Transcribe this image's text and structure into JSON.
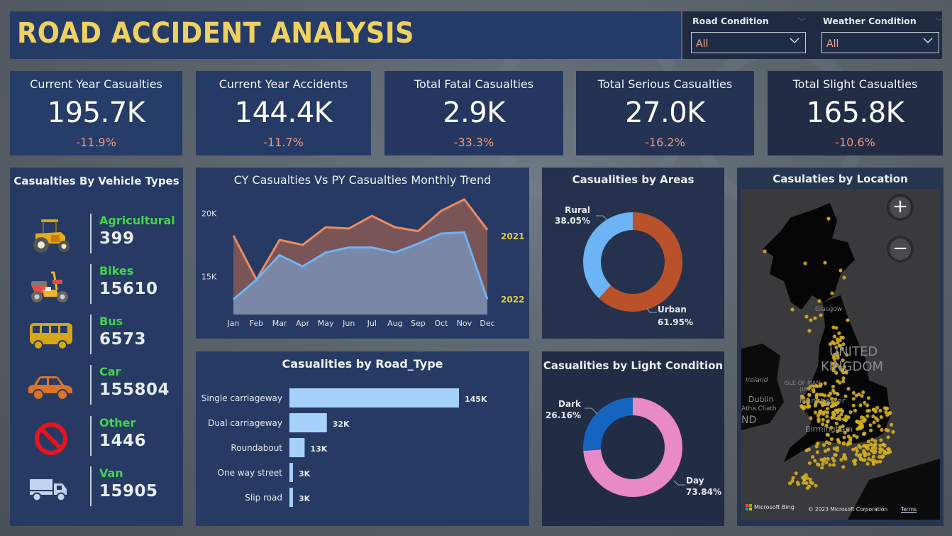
{
  "header": {
    "title": "ROAD ACCIDENT ANALYSIS"
  },
  "filters": [
    {
      "label": "Road Condition",
      "value": "All"
    },
    {
      "label": "Weather Condition",
      "value": "All"
    }
  ],
  "kpis": [
    {
      "title": "Current Year Casualties",
      "value": "195.7K",
      "delta": "-11.9%"
    },
    {
      "title": "Current Year Accidents",
      "value": "144.4K",
      "delta": "-11.7%"
    },
    {
      "title": "Total Fatal Casualties",
      "value": "2.9K",
      "delta": "-33.3%"
    },
    {
      "title": "Total Serious Casualties",
      "value": "27.0K",
      "delta": "-16.2%"
    },
    {
      "title": "Total Slight Casualties",
      "value": "165.8K",
      "delta": "-10.6%"
    }
  ],
  "vehicles": {
    "title": "Casualties By Vehicle Types",
    "items": [
      {
        "label": "Agricultural",
        "value": "399",
        "icon": "tractor-icon"
      },
      {
        "label": "Bikes",
        "value": "15610",
        "icon": "motorbike-icon"
      },
      {
        "label": "Bus",
        "value": "6573",
        "icon": "bus-icon"
      },
      {
        "label": "Car",
        "value": "155804",
        "icon": "car-icon"
      },
      {
        "label": "Other",
        "value": "1446",
        "icon": "prohibited-icon"
      },
      {
        "label": "Van",
        "value": "15905",
        "icon": "van-icon"
      }
    ]
  },
  "map": {
    "title": "Casulaties by Location",
    "zoom_in": "+",
    "zoom_out": "−",
    "labels": {
      "country1": "UNITED",
      "country2": "KINGDOM",
      "glasgow": "Glasgow",
      "ireland": "Ireland",
      "isle": "ISLE OF MAN",
      "isle_uk": "(UK)",
      "dublin": "Dublin",
      "atha": "Atha Cliath",
      "manchester": "Manchester",
      "birmingham": "Birmingham",
      "nd": "ND"
    },
    "attribution_brand": "Microsoft Bing",
    "copyright": "© 2023 Microsoft Corporation",
    "terms": "Terms"
  },
  "colors": {
    "title_yellow": "#efd162",
    "delta_red": "#f19a80",
    "vehicle_green": "#41d64a",
    "cy_line": "#6cb4f5",
    "py_line": "#ec8a5f",
    "urban": "#b9522a",
    "rural": "#6cb4f5",
    "day": "#e88ac6",
    "dark": "#1565c0",
    "bar": "#a6d1fb"
  },
  "chart_data": [
    {
      "type": "area",
      "title": "CY Casualties Vs PY Casualties Monthly Trend",
      "categories": [
        "Jan",
        "Feb",
        "Mar",
        "Apr",
        "May",
        "Jun",
        "Jul",
        "Aug",
        "Sep",
        "Oct",
        "Nov",
        "Dec"
      ],
      "yticks": [
        {
          "value": 15000,
          "label": "15K"
        },
        {
          "value": 20000,
          "label": "20K"
        }
      ],
      "ylim": [
        12000,
        22500
      ],
      "series": [
        {
          "name": "2021",
          "values": [
            18250,
            14750,
            17900,
            17500,
            18900,
            18800,
            19800,
            18900,
            18600,
            20200,
            21100,
            18700
          ]
        },
        {
          "name": "2022",
          "values": [
            13200,
            14750,
            16700,
            15800,
            16900,
            17300,
            17300,
            16900,
            17600,
            18400,
            18500,
            13200
          ]
        }
      ],
      "legend": "right"
    },
    {
      "type": "bar",
      "title": "Casualities by Road_Type",
      "categories": [
        "Single carriageway",
        "Dual carriageway",
        "Roundabout",
        "One way street",
        "Slip road"
      ],
      "values": [
        145000,
        32000,
        13000,
        3000,
        3000
      ],
      "data_labels": [
        "145K",
        "32K",
        "13K",
        "3K",
        "3K"
      ],
      "orientation": "horizontal"
    },
    {
      "type": "pie",
      "title": "Casualities by Areas",
      "slices": [
        {
          "name": "Urban",
          "value": 61.95,
          "label": "61.95%"
        },
        {
          "name": "Rural",
          "value": 38.05,
          "label": "38.05%"
        }
      ]
    },
    {
      "type": "pie",
      "title": "Casualities by Light Condition",
      "slices": [
        {
          "name": "Day",
          "value": 73.84,
          "label": "73.84%"
        },
        {
          "name": "Dark",
          "value": 26.16,
          "label": "26.16%"
        }
      ]
    }
  ]
}
